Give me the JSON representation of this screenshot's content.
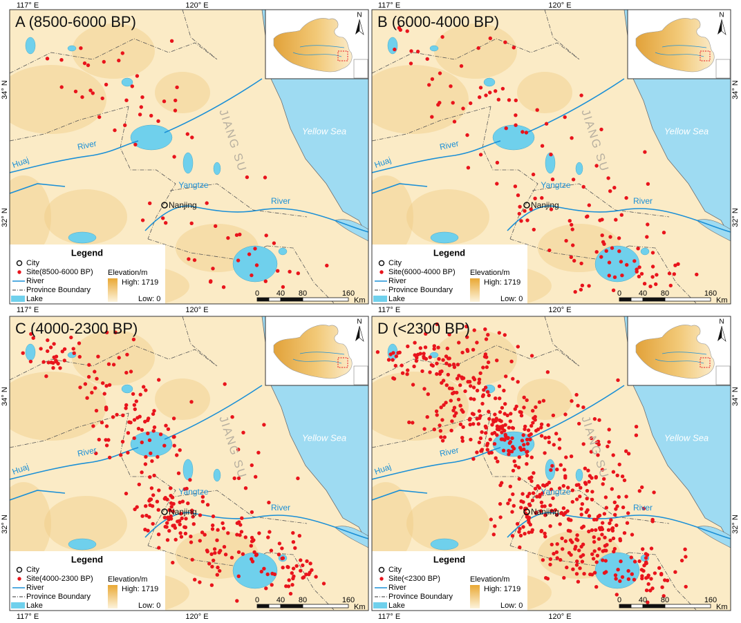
{
  "frame": {
    "lon_top": [
      "117° E",
      "120° E",
      "117° E",
      "120° E"
    ],
    "lon_middle": [
      "117° E",
      "120° E",
      "117° E",
      "120° E"
    ],
    "lon_bottom": [
      "117° E",
      "120° E",
      "117° E",
      "120° E"
    ],
    "lat_left": [
      "34° N",
      "32° N",
      "34° N",
      "32° N"
    ],
    "lat_right": [
      "34° N",
      "32° N",
      "34° N",
      "32° N"
    ]
  },
  "panels": [
    {
      "title": "A (8500-6000 BP)",
      "map_labels": {
        "huai": "Huaj",
        "huai_river": "River",
        "jiangsu": "JIANG SU",
        "sea": "Yellow Sea",
        "yangtze": "Yangtze",
        "yangtze_river": "River",
        "city": "Nanjing"
      },
      "legend": {
        "title": "Legend",
        "city": "City",
        "site": "Site(8500-6000 BP)",
        "river": "River",
        "boundary": "Province Boundary",
        "lake": "Lake",
        "elevation": "Elevation/m",
        "high": "High: 1719",
        "low": "Low: 0"
      },
      "scale": {
        "labels": [
          "0",
          "40",
          "80",
          "160"
        ],
        "unit": "Km"
      },
      "inset": {
        "north": "N"
      }
    },
    {
      "title": "B (6000-4000 BP)",
      "map_labels": {
        "huai": "Huaj",
        "huai_river": "River",
        "jiangsu": "JIANG SU",
        "sea": "Yellow Sea",
        "yangtze": "Yangtze",
        "yangtze_river": "River",
        "city": "Nanjing"
      },
      "legend": {
        "title": "Legend",
        "city": "City",
        "site": "Site(6000-4000 BP)",
        "river": "River",
        "boundary": "Province Boundary",
        "lake": "Lake",
        "elevation": "Elevation/m",
        "high": "High: 1719",
        "low": "Low: 0"
      },
      "scale": {
        "labels": [
          "0",
          "40",
          "80",
          "160"
        ],
        "unit": "Km"
      },
      "inset": {
        "north": "N"
      }
    },
    {
      "title": "C (4000-2300 BP)",
      "map_labels": {
        "huai": "Huaj",
        "huai_river": "River",
        "jiangsu": "JIANG SU",
        "sea": "Yellow Sea",
        "yangtze": "Yangtze",
        "yangtze_river": "River",
        "city": "Nanjing"
      },
      "legend": {
        "title": "Legend",
        "city": "City",
        "site": "Site(4000-2300 BP)",
        "river": "River",
        "boundary": "Province Boundary",
        "lake": "Lake",
        "elevation": "Elevation/m",
        "high": "High: 1719",
        "low": "Low: 0"
      },
      "scale": {
        "labels": [
          "0",
          "40",
          "80",
          "160"
        ],
        "unit": "Km"
      },
      "inset": {
        "north": "N"
      }
    },
    {
      "title": "D (<2300 BP)",
      "map_labels": {
        "huai": "Huaj",
        "huai_river": "River",
        "jiangsu": "JIANG SU",
        "sea": "Yellow Sea",
        "yangtze": "Yangtze",
        "yangtze_river": "River",
        "city": "Nanjing"
      },
      "legend": {
        "title": "Legend",
        "city": "City",
        "site": "Site(<2300 BP)",
        "river": "River",
        "boundary": "Province Boundary",
        "lake": "Lake",
        "elevation": "Elevation/m",
        "high": "High: 1719",
        "low": "Low: 0"
      },
      "scale": {
        "labels": [
          "0",
          "40",
          "80",
          "160"
        ],
        "unit": "Km"
      },
      "inset": {
        "north": "N"
      }
    }
  ]
}
